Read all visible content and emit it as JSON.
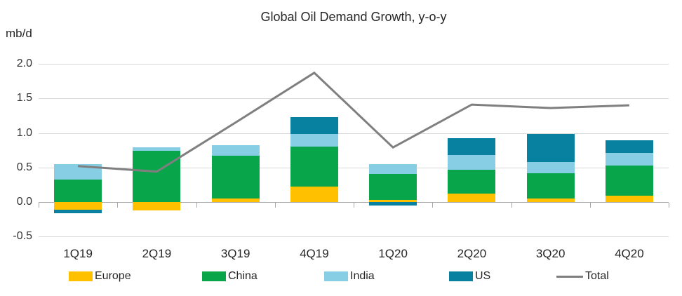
{
  "chart_data": {
    "type": "bar",
    "stacked": true,
    "title": "Global Oil Demand Growth, y-o-y",
    "ylabel": "mb/d",
    "xlabel": "",
    "ylim": [
      -0.5,
      2.0
    ],
    "yticks": [
      2.0,
      1.5,
      1.0,
      0.5,
      0.0,
      -0.5
    ],
    "grid": true,
    "legend_position": "bottom",
    "categories": [
      "1Q19",
      "2Q19",
      "3Q19",
      "4Q19",
      "1Q20",
      "2Q20",
      "3Q20",
      "4Q20"
    ],
    "series": [
      {
        "name": "Europe",
        "kind": "bar",
        "color": "#FFC000",
        "values": [
          -0.11,
          -0.12,
          0.05,
          0.22,
          0.03,
          0.12,
          0.05,
          0.09
        ]
      },
      {
        "name": "China",
        "kind": "bar",
        "color": "#08A54A",
        "values": [
          0.32,
          0.74,
          0.62,
          0.58,
          0.38,
          0.35,
          0.37,
          0.44
        ]
      },
      {
        "name": "India",
        "kind": "bar",
        "color": "#87CEE4",
        "values": [
          0.23,
          0.05,
          0.15,
          0.18,
          0.14,
          0.21,
          0.16,
          0.18
        ]
      },
      {
        "name": "US",
        "kind": "bar",
        "color": "#0880A0",
        "values": [
          -0.05,
          0.0,
          0.0,
          0.25,
          -0.05,
          0.24,
          0.4,
          0.18
        ]
      },
      {
        "name": "Total",
        "kind": "line",
        "color": "#7F7F7F",
        "values": [
          0.52,
          0.44,
          1.15,
          1.87,
          0.79,
          1.41,
          1.36,
          1.4
        ]
      }
    ],
    "colors": {
      "gridline": "#D9D9D9",
      "zero_axis": "#A6A6A6",
      "text": "#262626"
    }
  }
}
